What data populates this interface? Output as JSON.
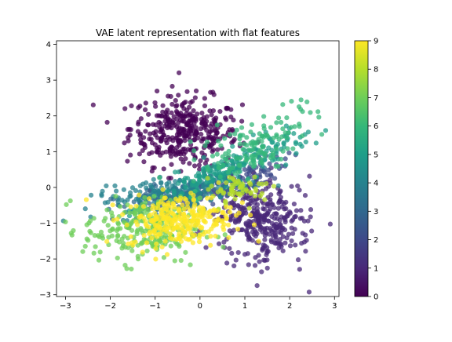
{
  "chart_data": {
    "type": "scatter",
    "title": "VAE latent representation with flat features",
    "xlabel": "",
    "ylabel": "",
    "xlim": [
      -3.2,
      3.1
    ],
    "ylim": [
      -3.05,
      4.1
    ],
    "x_ticks": [
      -3,
      -2,
      -1,
      0,
      1,
      2,
      3
    ],
    "y_ticks": [
      -3,
      -2,
      -1,
      0,
      1,
      2,
      3,
      4
    ],
    "grid": false,
    "marker_alpha": 0.75,
    "colormap": "viridis",
    "colormap_stops": [
      "#440154",
      "#482878",
      "#3e4989",
      "#31688e",
      "#26828e",
      "#1f9e89",
      "#35b779",
      "#6ece58",
      "#b5de2b",
      "#fde725"
    ],
    "colorbar": {
      "range": [
        0,
        9
      ],
      "ticks": [
        0,
        1,
        2,
        3,
        4,
        5,
        6,
        7,
        8,
        9
      ],
      "position": "right"
    },
    "clusters": [
      {
        "label": 0,
        "center": [
          -0.35,
          1.55
        ],
        "spread": [
          0.6,
          0.5
        ],
        "angle_deg": -5,
        "count": 380
      },
      {
        "label": 1,
        "center": [
          1.4,
          -0.95
        ],
        "spread": [
          0.5,
          0.55
        ],
        "angle_deg": 35,
        "count": 340
      },
      {
        "label": 2,
        "center": [
          0.45,
          0.05
        ],
        "spread": [
          0.8,
          0.18
        ],
        "angle_deg": 25,
        "count": 120
      },
      {
        "label": 3,
        "center": [
          -0.4,
          -0.2
        ],
        "spread": [
          0.75,
          0.2
        ],
        "angle_deg": 15,
        "count": 140
      },
      {
        "label": 4,
        "center": [
          -0.6,
          -0.15
        ],
        "spread": [
          0.9,
          0.2
        ],
        "angle_deg": 10,
        "count": 160
      },
      {
        "label": 5,
        "center": [
          0.7,
          0.55
        ],
        "spread": [
          1.0,
          0.2
        ],
        "angle_deg": 28,
        "count": 200
      },
      {
        "label": 6,
        "center": [
          1.2,
          1.2
        ],
        "spread": [
          0.75,
          0.35
        ],
        "angle_deg": 35,
        "count": 140
      },
      {
        "label": 7,
        "center": [
          -1.3,
          -1.2
        ],
        "spread": [
          0.65,
          0.45
        ],
        "angle_deg": 0,
        "count": 240
      },
      {
        "label": 8,
        "center": [
          0.9,
          -0.05
        ],
        "spread": [
          0.35,
          0.22
        ],
        "angle_deg": 10,
        "count": 60
      },
      {
        "label": 9,
        "center": [
          -0.45,
          -0.9
        ],
        "spread": [
          0.6,
          0.35
        ],
        "angle_deg": 5,
        "count": 280
      }
    ]
  }
}
